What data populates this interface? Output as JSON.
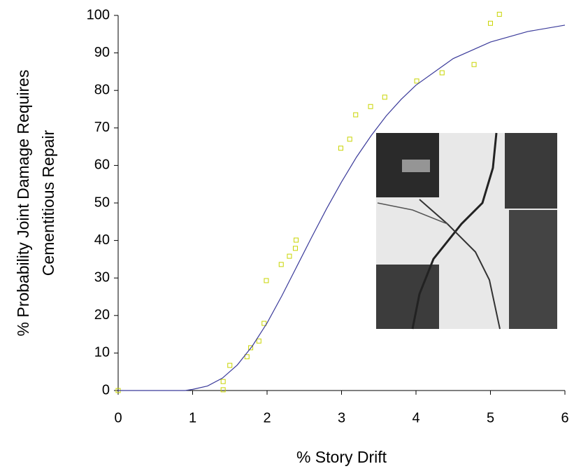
{
  "chart_data": {
    "type": "scatter",
    "x_label": "% Story Drift",
    "y_label": [
      "% Probability Joint Damage Requires",
      "Cementitious Repair"
    ],
    "xlim": [
      0,
      6
    ],
    "xticks": [
      0,
      1,
      2,
      3,
      4,
      5,
      6
    ],
    "ylim": [
      0,
      100
    ],
    "yticks": [
      0,
      10,
      20,
      30,
      40,
      50,
      60,
      70,
      80,
      90,
      100
    ],
    "grid": false,
    "series": [
      {
        "style": "markers",
        "color": "#c8d400",
        "x": [
          0,
          1.41,
          1.41,
          1.5,
          1.73,
          1.78,
          1.89,
          1.96,
          1.99,
          2.19,
          2.3,
          2.38,
          2.39,
          2.99,
          3.11,
          3.19,
          3.39,
          3.58,
          4.01,
          4.35,
          4.78,
          5.0,
          5.12
        ],
        "values": [
          0,
          0.2,
          2.4,
          6.7,
          9.0,
          11.4,
          13.2,
          17.9,
          29.3,
          33.6,
          35.8,
          37.9,
          40.1,
          64.6,
          67.0,
          73.5,
          75.7,
          78.2,
          82.5,
          84.7,
          86.9,
          97.9,
          100.3
        ]
      },
      {
        "style": "line",
        "color": "#3a3a9a",
        "x": [
          0,
          0.9,
          1.0,
          1.2,
          1.4,
          1.6,
          1.8,
          2.0,
          2.2,
          2.4,
          2.6,
          2.8,
          3.0,
          3.2,
          3.4,
          3.6,
          3.8,
          4.0,
          4.5,
          5.0,
          5.5,
          6.0
        ],
        "values": [
          0,
          0,
          0.3,
          1.2,
          3.3,
          6.8,
          11.8,
          18.0,
          25.3,
          33.1,
          40.9,
          48.5,
          55.6,
          62.2,
          68.0,
          73.2,
          77.6,
          81.4,
          88.5,
          92.9,
          95.7,
          97.4
        ]
      }
    ]
  }
}
